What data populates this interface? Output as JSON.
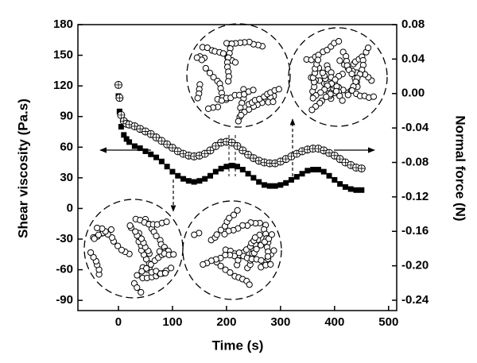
{
  "chart_data": {
    "type": "scatter",
    "xlabel": "Time (s)",
    "ylabel": "Shear viscosity (Pa.s)",
    "y2label": "Normal force (N)",
    "x": [
      0,
      2,
      5,
      10,
      15,
      20,
      30,
      40,
      50,
      60,
      70,
      80,
      90,
      100,
      110,
      120,
      130,
      140,
      150,
      160,
      170,
      180,
      190,
      200,
      210,
      220,
      230,
      240,
      250,
      260,
      270,
      280,
      290,
      300,
      310,
      320,
      330,
      340,
      350,
      360,
      370,
      380,
      390,
      400,
      410,
      420,
      430,
      440,
      450
    ],
    "series": [
      {
        "color": "#000000",
        "marker": "square",
        "values": [
          110,
          95,
          80,
          72,
          68,
          65,
          61,
          59,
          56,
          53,
          50,
          46,
          41,
          36,
          32,
          29,
          27,
          26,
          27,
          29,
          32,
          36,
          39,
          41,
          42,
          41,
          38,
          34,
          30,
          26,
          23,
          22,
          22,
          23,
          25,
          28,
          31,
          34,
          37,
          38,
          38,
          36,
          32,
          28,
          24,
          21,
          19,
          18,
          18
        ]
      },
      {
        "color": "#000000",
        "marker": "open-circle",
        "axis": "y2",
        "values": [
          0.01,
          -0.005,
          -0.025,
          -0.032,
          -0.035,
          -0.036,
          -0.038,
          -0.041,
          -0.044,
          -0.047,
          -0.051,
          -0.055,
          -0.059,
          -0.063,
          -0.067,
          -0.07,
          -0.072,
          -0.073,
          -0.072,
          -0.07,
          -0.066,
          -0.061,
          -0.057,
          -0.056,
          -0.057,
          -0.061,
          -0.066,
          -0.071,
          -0.075,
          -0.078,
          -0.08,
          -0.081,
          -0.081,
          -0.079,
          -0.076,
          -0.073,
          -0.07,
          -0.067,
          -0.065,
          -0.064,
          -0.064,
          -0.066,
          -0.069,
          -0.072,
          -0.076,
          -0.08,
          -0.083,
          -0.086,
          -0.087
        ]
      }
    ],
    "xlim": [
      -75,
      515
    ],
    "xticks": [
      0,
      100,
      200,
      300,
      400,
      500
    ],
    "ylim": [
      -100,
      180
    ],
    "yticks": [
      -90,
      -60,
      -30,
      0,
      30,
      60,
      90,
      120,
      150,
      180
    ],
    "y2lim": [
      -0.252,
      0.08
    ],
    "y2ticks": [
      -0.24,
      {
        "value": -0.2,
        "label": "-0.20"
      },
      -0.16,
      -0.12,
      -0.08,
      -0.04,
      {
        "value": 0,
        "label": "0.00"
      },
      0.04,
      0.08
    ]
  }
}
